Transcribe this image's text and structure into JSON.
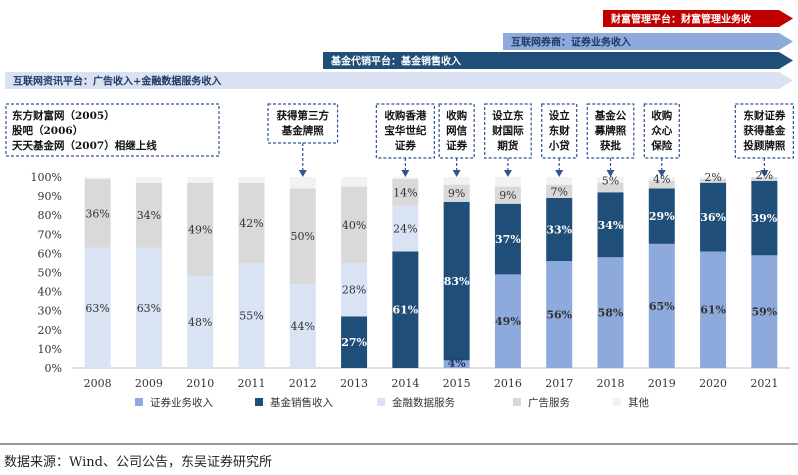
{
  "arrows": [
    {
      "label": "财富管理平台：财富管理业务收",
      "color": "#c00000",
      "text_color": "#ffffff"
    },
    {
      "label": "互联网券商：证券业务收入",
      "color": "#8ea9db",
      "text_color": "#1f3864"
    },
    {
      "label": "基金代销平台：基金销售收入",
      "color": "#1f4e79",
      "text_color": "#ffffff"
    },
    {
      "label": "互联网资讯平台：广告收入+金融数据服务收入",
      "color": "#d9e1f2",
      "text_color": "#1f3864"
    }
  ],
  "callouts": [
    {
      "lines": [
        "东方财富网（2005）",
        "股吧（2006）",
        "天天基金网（2007）相继上线"
      ]
    },
    {
      "lines": [
        "获得第三方",
        "基金牌照"
      ],
      "year": "2012"
    },
    {
      "lines": [
        "收购香港",
        "宝华世纪",
        "证券"
      ],
      "year": "2014"
    },
    {
      "lines": [
        "收购",
        "网信",
        "证券"
      ],
      "year": "2015"
    },
    {
      "lines": [
        "设立东",
        "财国际",
        "期货"
      ],
      "year": "2016"
    },
    {
      "lines": [
        "设立",
        "东财",
        "小贷"
      ],
      "year": "2017"
    },
    {
      "lines": [
        "基金公",
        "募牌照",
        "获批"
      ],
      "year": "2018"
    },
    {
      "lines": [
        "收购",
        "众心",
        "保险"
      ],
      "year": "2019"
    },
    {
      "lines": [
        "东财证券",
        "获得基金",
        "投顾牌照"
      ],
      "year": "2021"
    }
  ],
  "chart_data": {
    "type": "bar",
    "stacked": true,
    "categories": [
      "2008",
      "2009",
      "2010",
      "2011",
      "2012",
      "2013",
      "2014",
      "2015",
      "2016",
      "2017",
      "2018",
      "2019",
      "2020",
      "2021"
    ],
    "ylim": [
      0,
      100
    ],
    "yticks": [
      "0%",
      "10%",
      "20%",
      "30%",
      "40%",
      "50%",
      "60%",
      "70%",
      "80%",
      "90%",
      "100%"
    ],
    "series": [
      {
        "name": "证券业务收入",
        "color": "#8ea9db",
        "values": [
          0,
          0,
          0,
          0,
          0,
          0,
          0,
          4,
          49,
          56,
          58,
          65,
          61,
          59
        ]
      },
      {
        "name": "基金销售收入",
        "color": "#1f4e79",
        "values": [
          0,
          0,
          0,
          0,
          0,
          27,
          61,
          83,
          37,
          33,
          34,
          29,
          36,
          39
        ]
      },
      {
        "name": "金融数据服务",
        "color": "#dae3f3",
        "values": [
          63,
          63,
          48,
          55,
          44,
          28,
          24,
          0,
          0,
          0,
          0,
          0,
          0,
          0
        ]
      },
      {
        "name": "广告服务",
        "color": "#d9d9d9",
        "values": [
          36,
          34,
          49,
          42,
          50,
          40,
          14,
          9,
          9,
          7,
          5,
          4,
          2,
          2
        ]
      },
      {
        "name": "其他",
        "color": "#f2f2f2",
        "values": [
          1,
          3,
          3,
          3,
          6,
          5,
          1,
          4,
          5,
          4,
          3,
          2,
          1,
          0
        ]
      }
    ],
    "data_labels": [
      {
        "year": "2008",
        "series": "金融数据服务",
        "text": "63%"
      },
      {
        "year": "2008",
        "series": "广告服务",
        "text": "36%"
      },
      {
        "year": "2009",
        "series": "金融数据服务",
        "text": "63%"
      },
      {
        "year": "2009",
        "series": "广告服务",
        "text": "34%"
      },
      {
        "year": "2010",
        "series": "金融数据服务",
        "text": "48%"
      },
      {
        "year": "2010",
        "series": "广告服务",
        "text": "49%"
      },
      {
        "year": "2011",
        "series": "金融数据服务",
        "text": "55%"
      },
      {
        "year": "2011",
        "series": "广告服务",
        "text": "42%"
      },
      {
        "year": "2012",
        "series": "金融数据服务",
        "text": "44%"
      },
      {
        "year": "2012",
        "series": "广告服务",
        "text": "50%"
      },
      {
        "year": "2013",
        "series": "基金销售收入",
        "text": "27%"
      },
      {
        "year": "2013",
        "series": "金融数据服务",
        "text": "28%"
      },
      {
        "year": "2013",
        "series": "广告服务",
        "text": "40%"
      },
      {
        "year": "2014",
        "series": "基金销售收入",
        "text": "61%"
      },
      {
        "year": "2014",
        "series": "金融数据服务",
        "text": "24%"
      },
      {
        "year": "2014",
        "series": "广告服务",
        "text": "14%"
      },
      {
        "year": "2015",
        "series": "证券业务收入",
        "text": "4%"
      },
      {
        "year": "2015",
        "series": "基金销售收入",
        "text": "83%"
      },
      {
        "year": "2015",
        "series": "广告服务",
        "text": "9%"
      },
      {
        "year": "2016",
        "series": "证券业务收入",
        "text": "49%"
      },
      {
        "year": "2016",
        "series": "基金销售收入",
        "text": "37%"
      },
      {
        "year": "2016",
        "series": "广告服务",
        "text": "9%"
      },
      {
        "year": "2017",
        "series": "证券业务收入",
        "text": "56%"
      },
      {
        "year": "2017",
        "series": "基金销售收入",
        "text": "33%"
      },
      {
        "year": "2017",
        "series": "广告服务",
        "text": "7%"
      },
      {
        "year": "2018",
        "series": "证券业务收入",
        "text": "58%"
      },
      {
        "year": "2018",
        "series": "基金销售收入",
        "text": "34%"
      },
      {
        "year": "2018",
        "series": "广告服务",
        "text": "5%"
      },
      {
        "year": "2019",
        "series": "证券业务收入",
        "text": "65%"
      },
      {
        "year": "2019",
        "series": "基金销售收入",
        "text": "29%"
      },
      {
        "year": "2019",
        "series": "广告服务",
        "text": "4%"
      },
      {
        "year": "2020",
        "series": "证券业务收入",
        "text": "61%"
      },
      {
        "year": "2020",
        "series": "基金销售收入",
        "text": "36%"
      },
      {
        "year": "2020",
        "series": "广告服务",
        "text": "2%"
      },
      {
        "year": "2021",
        "series": "证券业务收入",
        "text": "59%"
      },
      {
        "year": "2021",
        "series": "基金销售收入",
        "text": "39%"
      },
      {
        "year": "2021",
        "series": "广告服务",
        "text": "2%"
      }
    ],
    "legend_position": "bottom"
  },
  "source": "数据来源：Wind、公司公告，东吴证券研究所"
}
